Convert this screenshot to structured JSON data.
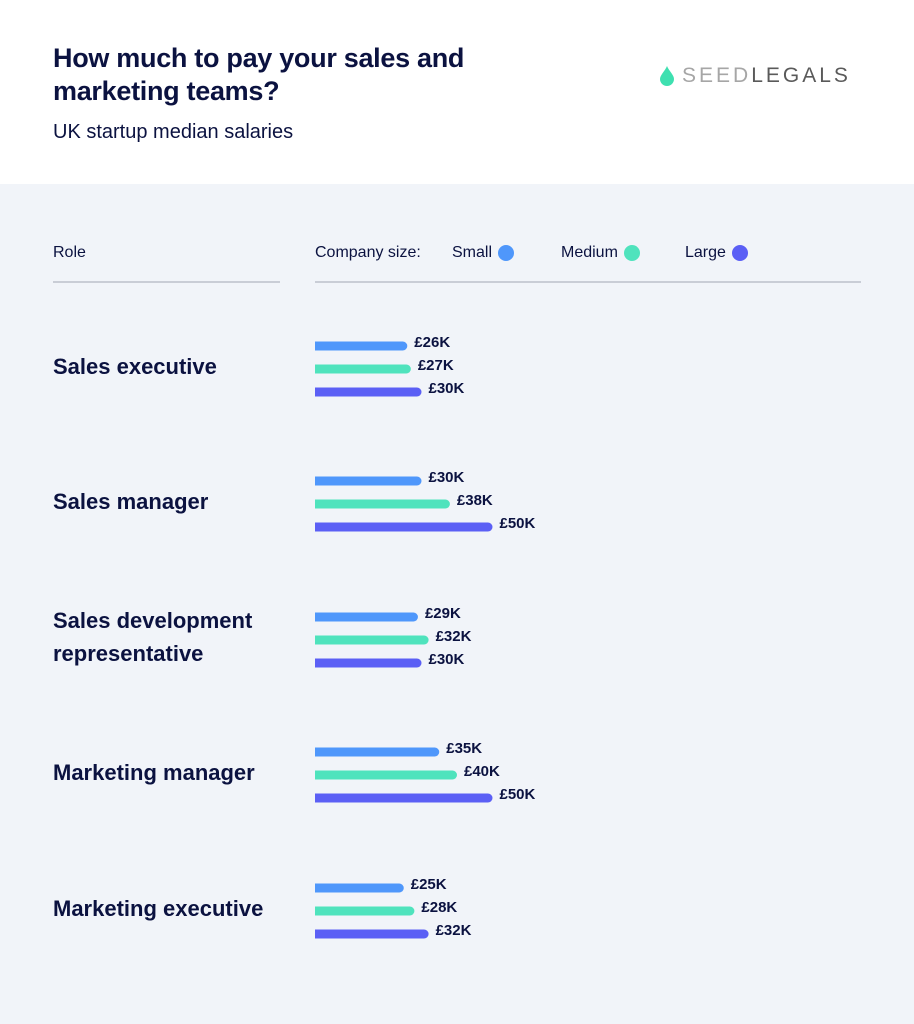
{
  "header": {
    "title": "How much to pay your sales and marketing teams?",
    "subtitle": "UK startup median salaries",
    "logo": {
      "part1": "SEED",
      "part2": "LEGALS",
      "icon": "droplet-icon"
    }
  },
  "columns": {
    "role": "Role",
    "company_size": "Company size:"
  },
  "chart_data": {
    "type": "bar",
    "orientation": "horizontal",
    "title": "How much to pay your sales and marketing teams?",
    "subtitle": "UK startup median salaries",
    "categories": [
      "Sales executive",
      "Sales manager",
      "Sales development representative",
      "Marketing manager",
      "Marketing executive"
    ],
    "series": [
      {
        "name": "Small",
        "color": "#4f97fb",
        "values": [
          26,
          30,
          29,
          35,
          25
        ],
        "labels": [
          "£26K",
          "£30K",
          "£29K",
          "£35K",
          "£25K"
        ]
      },
      {
        "name": "Medium",
        "color": "#4fe3bd",
        "values": [
          27,
          38,
          32,
          40,
          28
        ],
        "labels": [
          "£27K",
          "£38K",
          "£32K",
          "£40K",
          "£28K"
        ]
      },
      {
        "name": "Large",
        "color": "#5b5ff5",
        "values": [
          30,
          50,
          30,
          50,
          32
        ],
        "labels": [
          "£30K",
          "£50K",
          "£30K",
          "£50K",
          "£32K"
        ]
      }
    ],
    "unit": "£K",
    "legend": "top",
    "grid": false
  }
}
